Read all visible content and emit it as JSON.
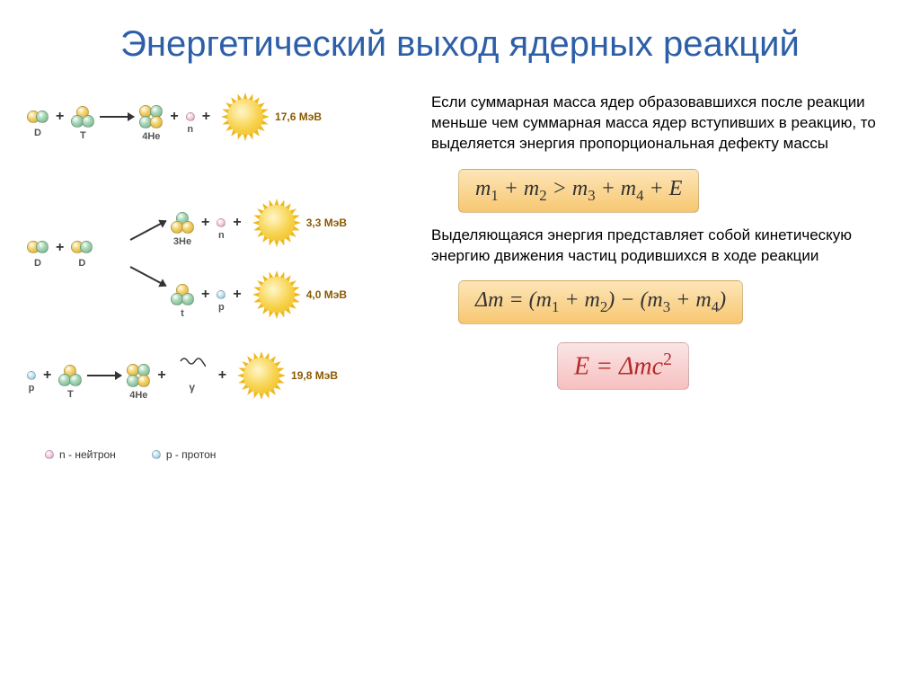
{
  "title": "Энергетический выход ядерных реакций",
  "paragraph1": "Если суммарная масса ядер образовавшихся после реакции меньше чем суммарная масса ядер вступивших в реакцию, то выделяется энергия пропорциональная дефекту массы",
  "paragraph2": "Выделяющаяся энергия представляет собой кинетическую энергию движения частиц родившихся в ходе реакции",
  "formulas": {
    "f1_html": "m<sub>1</sub> + m<sub>2</sub> > m<sub>3</sub> + m<sub>4</sub> + E",
    "f2_html": "Δm = (m<sub>1</sub> + m<sub>2</sub>) − (m<sub>3</sub> + m<sub>4</sub>)",
    "f3_html": "E = Δmc<sup>2</sup>"
  },
  "formula_colors": {
    "orange_bg_top": "#fde5b8",
    "orange_bg_bot": "#f7c771",
    "orange_text": "#333333",
    "pink_bg_top": "#fbe5e5",
    "pink_bg_bot": "#f6c0c0",
    "pink_text": "#b52a2a"
  },
  "particle_colors": {
    "proton": "#d4a832",
    "neutron": "#6fae83",
    "small_neutron": "#d990b5",
    "small_proton": "#7ab8d6",
    "sun_core": "#f7d24b",
    "sun_ray": "#eeb81f"
  },
  "reactions": {
    "r1": {
      "in": [
        "D",
        "T"
      ],
      "out": [
        "4He",
        "n"
      ],
      "energy": "17,6 МэВ"
    },
    "r2": {
      "in": [
        "D",
        "D"
      ],
      "branch_top": {
        "out": [
          "3He",
          "n"
        ],
        "energy": "3,3 МэВ"
      },
      "branch_bot": {
        "out": [
          "t",
          "p"
        ],
        "energy": "4,0 МэВ"
      }
    },
    "r3": {
      "in": [
        "p",
        "T"
      ],
      "out": [
        "4He",
        "γ"
      ],
      "energy": "19,8 МэВ"
    }
  },
  "legend": {
    "neutron": "n - нейтрон",
    "proton": "p - протон"
  },
  "sun_ray_count": 20
}
